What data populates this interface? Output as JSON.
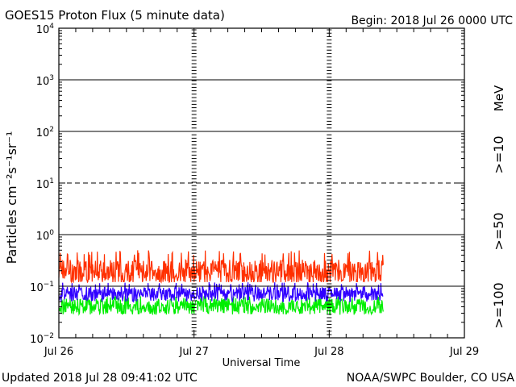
{
  "header": {
    "title": "GOES15 Proton Flux (5 minute data)",
    "begin": "Begin: 2018 Jul 26 0000 UTC"
  },
  "footer": {
    "updated": "Updated 2018 Jul 28 09:41:02 UTC",
    "credit": "NOAA/SWPC Boulder, CO USA"
  },
  "chart_data": {
    "type": "line",
    "title": "GOES15 Proton Flux (5 minute data)",
    "xlabel": "Universal Time",
    "ylabel": "Particles cm⁻²s⁻¹sr⁻¹",
    "yscale": "log",
    "ylim": [
      0.01,
      10000
    ],
    "xlim_days": [
      0,
      3
    ],
    "data_end_day": 2.4,
    "ytick_exponents": [
      4,
      3,
      2,
      1,
      0,
      -1,
      -2
    ],
    "xticks": [
      {
        "day": 0,
        "label": "Jul 26"
      },
      {
        "day": 1,
        "label": "Jul 27"
      },
      {
        "day": 2,
        "label": "Jul 28"
      },
      {
        "day": 3,
        "label": "Jul 29"
      }
    ],
    "dashed_levels": [
      10
    ],
    "legend_units": "MeV",
    "series": [
      {
        "name": ">=10",
        "color": "#ff3000",
        "approx_values": {
          "min": 0.12,
          "typical": 0.19,
          "max": 0.5
        }
      },
      {
        "name": ">=50",
        "color": "#3000ff",
        "approx_values": {
          "min": 0.05,
          "typical": 0.07,
          "max": 0.12
        }
      },
      {
        "name": ">=100",
        "color": "#00ee00",
        "approx_values": {
          "min": 0.025,
          "typical": 0.04,
          "max": 0.065
        }
      }
    ]
  }
}
